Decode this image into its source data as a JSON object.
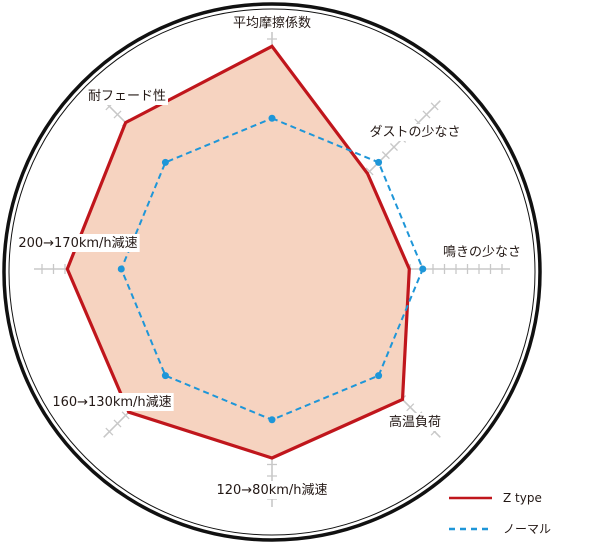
{
  "chart_data": {
    "type": "radar",
    "axes": [
      "平均摩擦係数",
      "ダストの少なさ",
      "鳴きの少なさ",
      "高温負荷",
      "120→80km/h減速",
      "160→130km/h減速",
      "200→170km/h減速",
      "耐フェード性"
    ],
    "range": [
      0,
      10
    ],
    "series": [
      {
        "name": "Z type",
        "values": [
          9.9,
          6.0,
          6.1,
          8.2,
          8.4,
          9.0,
          9.1,
          9.2
        ],
        "color": "#c0161c",
        "fill": "#f6d3c0",
        "style": "solid"
      },
      {
        "name": "ノーマル",
        "values": [
          6.7,
          6.7,
          6.7,
          6.7,
          6.7,
          6.7,
          6.7,
          6.7
        ],
        "color": "#1e96d8",
        "style": "dashed"
      }
    ],
    "legend": "bottom-right",
    "grid": true
  }
}
